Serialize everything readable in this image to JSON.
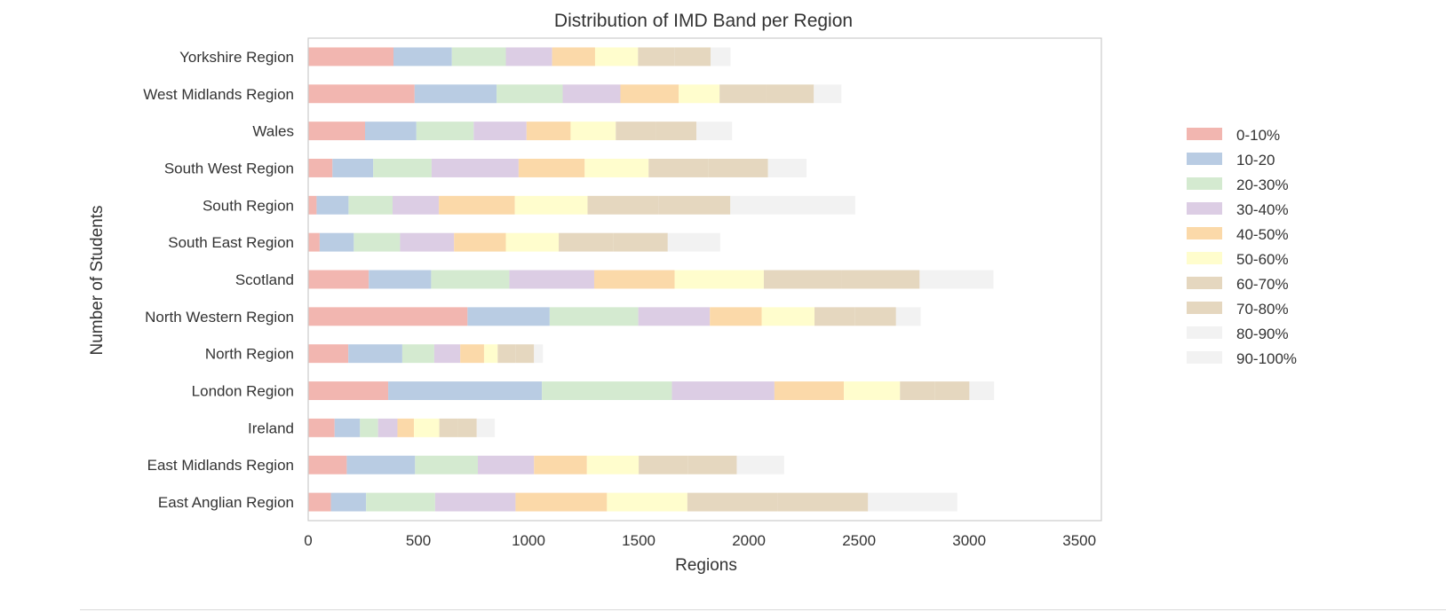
{
  "chart_data": {
    "type": "bar",
    "orientation": "horizontal",
    "stacked": true,
    "title": "Distribution of IMD Band per Region",
    "xlabel": "Regions",
    "ylabel": "Number of Students",
    "xlim": [
      0,
      3600
    ],
    "xticks": [
      0,
      500,
      1000,
      1500,
      2000,
      2500,
      3000,
      3500
    ],
    "grid": false,
    "legend_position": "right",
    "categories": [
      "East Anglian Region",
      "East Midlands Region",
      "Ireland",
      "London Region",
      "North Region",
      "North Western Region",
      "Scotland",
      "South East Region",
      "South Region",
      "South West Region",
      "Wales",
      "West Midlands Region",
      "Yorkshire Region"
    ],
    "series": [
      {
        "name": "0-10%",
        "color": "#f2b6b0",
        "values": [
          103,
          175,
          120,
          363,
          182,
          723,
          275,
          52,
          38,
          110,
          258,
          483,
          387
        ]
      },
      {
        "name": "10-20",
        "color": "#b9cce3",
        "values": [
          160,
          310,
          115,
          698,
          245,
          373,
          283,
          155,
          145,
          185,
          233,
          372,
          265
        ]
      },
      {
        "name": "20-30%",
        "color": "#d4ead0",
        "values": [
          313,
          285,
          82,
          590,
          145,
          402,
          355,
          210,
          200,
          265,
          260,
          300,
          245
        ]
      },
      {
        "name": "30-40%",
        "color": "#dccde4",
        "values": [
          365,
          255,
          88,
          465,
          118,
          325,
          385,
          245,
          210,
          395,
          240,
          262,
          210
        ]
      },
      {
        "name": "40-50%",
        "color": "#fbd9a9",
        "values": [
          415,
          240,
          75,
          315,
          108,
          235,
          365,
          235,
          345,
          300,
          200,
          265,
          195
        ]
      },
      {
        "name": "50-60%",
        "color": "#fffdcd",
        "values": [
          365,
          235,
          115,
          255,
          62,
          240,
          405,
          240,
          330,
          290,
          205,
          185,
          195
        ]
      },
      {
        "name": "60-70%",
        "color": "#e5d7bf",
        "values": [
          410,
          222,
          84,
          157,
          82,
          184,
          353,
          247,
          323,
          272,
          182,
          213,
          165
        ]
      },
      {
        "name": "70-80%",
        "color": "#e5d7bf",
        "values": [
          410,
          223,
          86,
          158,
          83,
          186,
          354,
          248,
          325,
          270,
          184,
          215,
          165
        ]
      },
      {
        "name": "80-90%",
        "color": "#f2f2f2",
        "values": [
          405,
          215,
          82,
          112,
          40,
          112,
          335,
          238,
          567,
          175,
          162,
          125,
          90
        ]
      },
      {
        "name": "90-100%",
        "color": "#f2f2f2",
        "values": [
          0,
          0,
          0,
          0,
          0,
          0,
          0,
          0,
          0,
          0,
          0,
          0,
          0
        ]
      }
    ]
  }
}
